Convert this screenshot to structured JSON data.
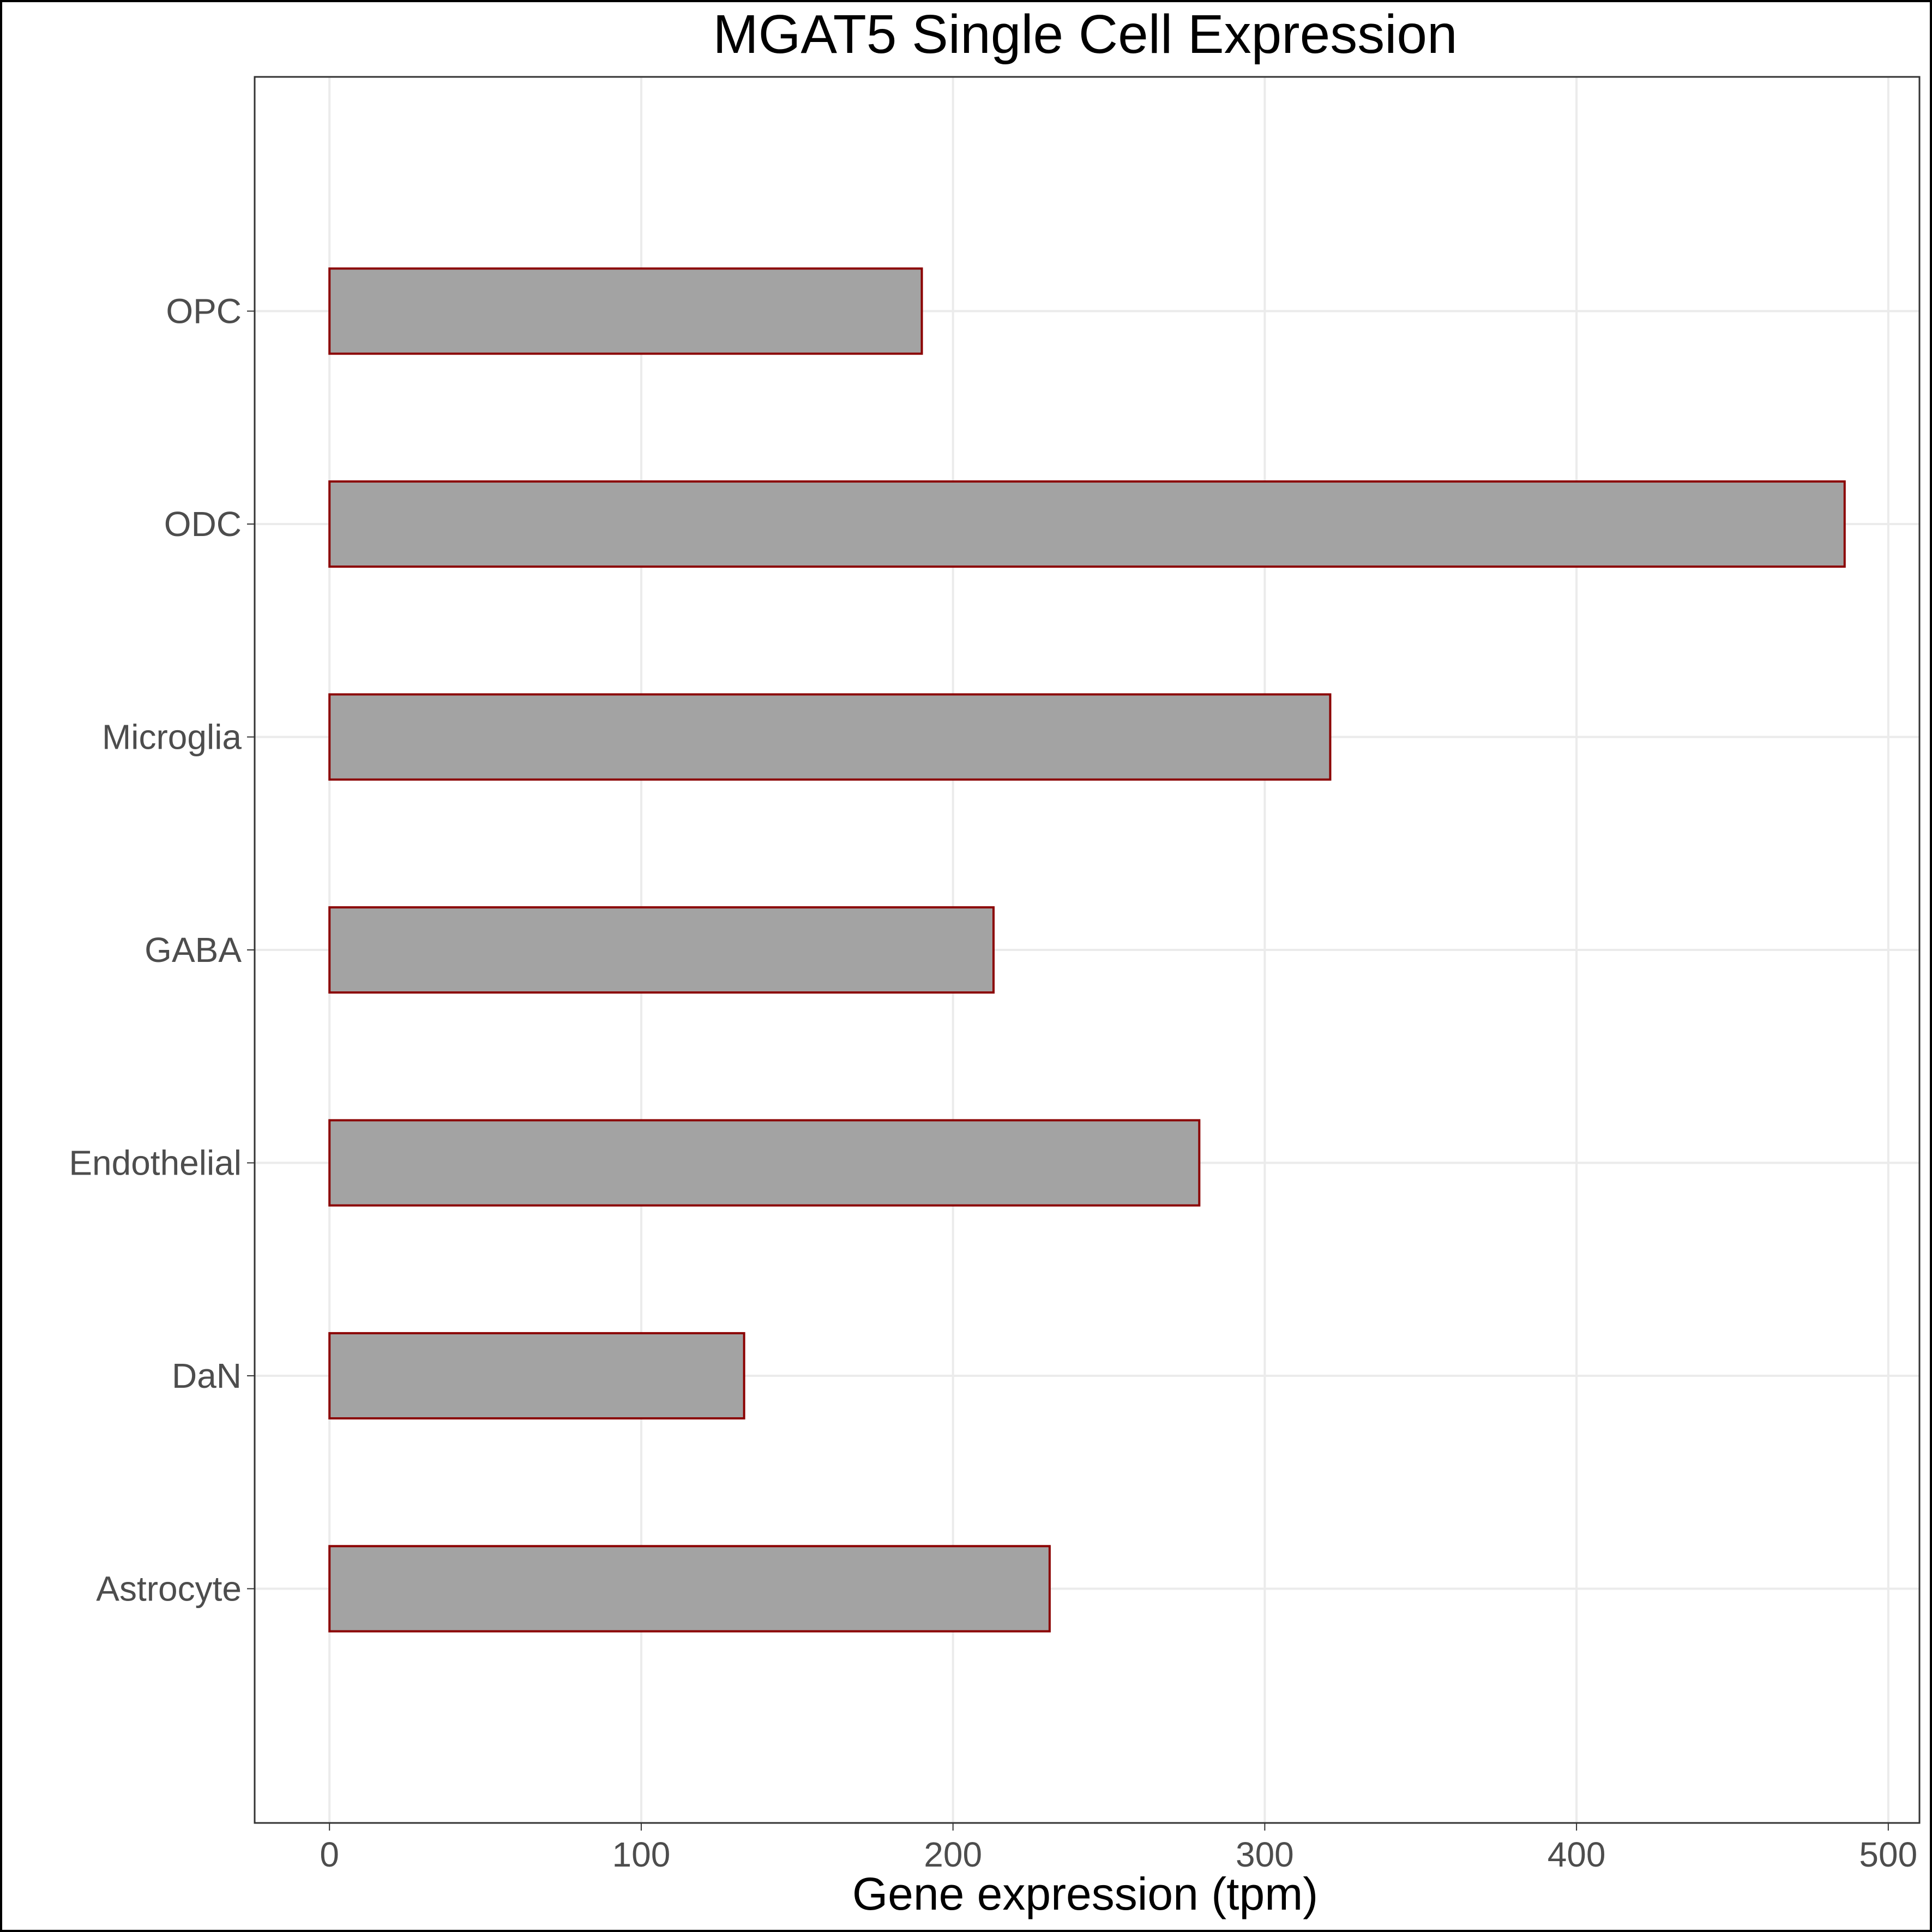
{
  "chart_data": {
    "type": "bar",
    "orientation": "horizontal",
    "title": "MGAT5 Single Cell Expression",
    "xlabel": "Gene expression (tpm)",
    "ylabel": "",
    "categories": [
      "Astrocyte",
      "DaN",
      "Endothelial",
      "GABA",
      "Microglia",
      "ODC",
      "OPC"
    ],
    "values": [
      231,
      133,
      279,
      213,
      321,
      486,
      190
    ],
    "xlim": [
      -24,
      510
    ],
    "xticks": [
      0,
      100,
      200,
      300,
      400,
      500
    ],
    "xtick_labels": [
      "0",
      "100",
      "200",
      "300",
      "400",
      "500"
    ],
    "grid": true,
    "legend": "none",
    "colors": {
      "bar_fill": "#a3a3a3",
      "bar_outline": "#8b0000",
      "grid": "#ebebeb",
      "tick_label": "#4d4d4d",
      "panel_border": "#333333"
    }
  }
}
